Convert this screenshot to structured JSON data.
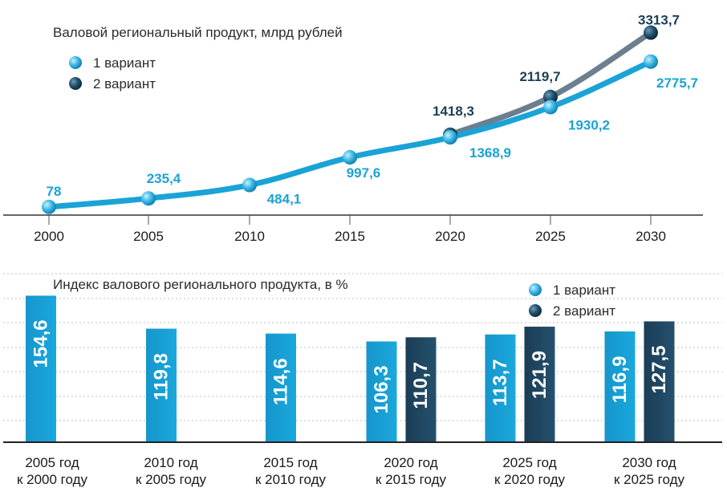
{
  "chart_data": [
    {
      "type": "line",
      "title": "Валовой региональный продукт, млрд рублей",
      "legend": [
        "1 вариант",
        "2 вариант"
      ],
      "x": [
        "2000",
        "2005",
        "2010",
        "2015",
        "2020",
        "2025",
        "2030"
      ],
      "ylim": [
        0,
        3500
      ],
      "series": [
        {
          "name": "1 вариант",
          "color": "#1aa3d6",
          "x": [
            "2000",
            "2005",
            "2010",
            "2015",
            "2020",
            "2025",
            "2030"
          ],
          "values": [
            78,
            235.4,
            484.1,
            997.6,
            1368.9,
            1930.2,
            2775.7
          ],
          "labels": [
            "78",
            "235,4",
            "484,1",
            "997,6",
            "1368,9",
            "1930,2",
            "2775,7"
          ]
        },
        {
          "name": "2 вариант",
          "color": "#1c3f57",
          "x": [
            "2020",
            "2025",
            "2030"
          ],
          "values": [
            1418.3,
            2119.7,
            3313.7
          ],
          "labels": [
            "1418,3",
            "2119,7",
            "3313,7"
          ]
        }
      ]
    },
    {
      "type": "bar",
      "title": "Индекс валового регионального продукта, в %",
      "legend": [
        "1 вариант",
        "2 вариант"
      ],
      "ylim": [
        0,
        160
      ],
      "categories": [
        [
          "2005 год",
          "к 2000 году"
        ],
        [
          "2010 год",
          "к 2005 году"
        ],
        [
          "2015 год",
          "к 2010 году"
        ],
        [
          "2020 год",
          "к 2015 году"
        ],
        [
          "2025 год",
          "к 2020 году"
        ],
        [
          "2030 год",
          "к 2025 году"
        ]
      ],
      "series": [
        {
          "name": "1 вариант",
          "color": "#1aa3d6",
          "values": [
            154.6,
            119.8,
            114.6,
            106.3,
            113.7,
            116.9
          ],
          "labels": [
            "154,6",
            "119,8",
            "114,6",
            "106,3",
            "113,7",
            "116,9"
          ]
        },
        {
          "name": "2 вариант",
          "color": "#1c3f57",
          "values": [
            null,
            null,
            null,
            110.7,
            121.9,
            127.5
          ],
          "labels": [
            null,
            null,
            null,
            "110,7",
            "121,9",
            "127,5"
          ]
        }
      ]
    }
  ]
}
